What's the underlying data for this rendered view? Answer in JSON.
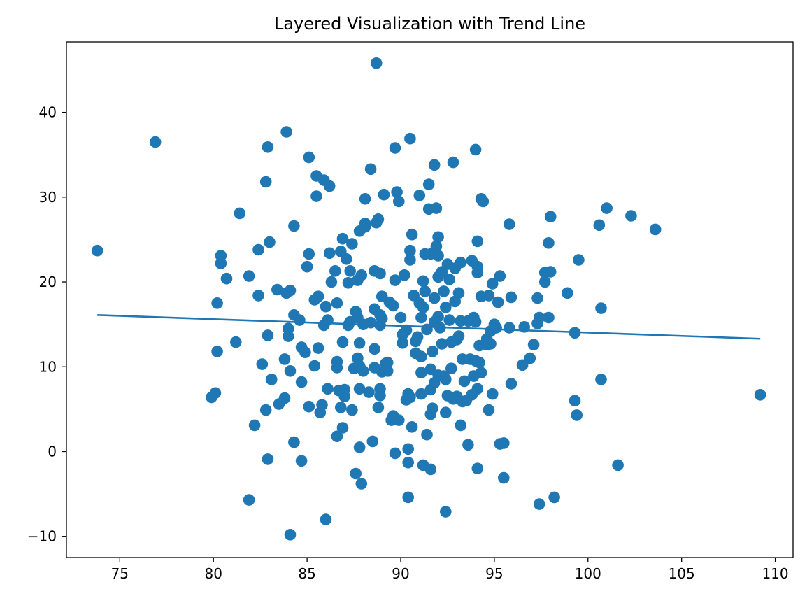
{
  "chart_data": {
    "type": "scatter",
    "title": "Layered Visualization with Trend Line",
    "xlabel": "",
    "ylabel": "",
    "xlim": [
      72.15,
      110.95
    ],
    "ylim": [
      -12.5,
      48.3
    ],
    "x_ticks": [
      75,
      80,
      85,
      90,
      95,
      100,
      105,
      110
    ],
    "y_ticks": [
      -10,
      0,
      10,
      20,
      30,
      40
    ],
    "y_tick_labels": [
      "−10",
      "0",
      "10",
      "20",
      "30",
      "40"
    ],
    "grid": false,
    "legend": "none",
    "color": "#1f77b4",
    "trend_line": {
      "x": [
        73.8,
        109.2
      ],
      "y": [
        16.1,
        13.3
      ]
    },
    "series": [
      {
        "points": [
          [
            73.8,
            23.7
          ],
          [
            76.9,
            36.5
          ],
          [
            79.9,
            6.4
          ],
          [
            80.1,
            6.9
          ],
          [
            80.2,
            11.8
          ],
          [
            80.2,
            17.5
          ],
          [
            80.4,
            22.2
          ],
          [
            80.4,
            23.1
          ],
          [
            80.7,
            20.4
          ],
          [
            81.2,
            12.9
          ],
          [
            81.4,
            28.1
          ],
          [
            81.9,
            20.7
          ],
          [
            81.9,
            -5.7
          ],
          [
            82.2,
            3.1
          ],
          [
            82.4,
            23.8
          ],
          [
            82.4,
            18.4
          ],
          [
            82.6,
            10.3
          ],
          [
            82.8,
            31.8
          ],
          [
            82.9,
            35.9
          ],
          [
            82.8,
            4.9
          ],
          [
            82.9,
            13.7
          ],
          [
            82.9,
            -0.9
          ],
          [
            83.0,
            24.7
          ],
          [
            83.1,
            8.5
          ],
          [
            83.4,
            19.1
          ],
          [
            83.5,
            5.6
          ],
          [
            83.8,
            10.9
          ],
          [
            83.8,
            6.3
          ],
          [
            83.9,
            18.7
          ],
          [
            83.9,
            37.7
          ],
          [
            84.0,
            14.5
          ],
          [
            84.0,
            13.6
          ],
          [
            84.1,
            -9.8
          ],
          [
            84.1,
            19.0
          ],
          [
            84.1,
            9.5
          ],
          [
            84.3,
            26.6
          ],
          [
            84.3,
            16.1
          ],
          [
            84.3,
            1.1
          ],
          [
            84.6,
            15.5
          ],
          [
            84.7,
            12.3
          ],
          [
            84.7,
            -1.1
          ],
          [
            84.7,
            8.2
          ],
          [
            84.9,
            11.7
          ],
          [
            85.0,
            21.8
          ],
          [
            85.1,
            5.3
          ],
          [
            85.1,
            23.3
          ],
          [
            85.1,
            34.7
          ],
          [
            85.4,
            10.1
          ],
          [
            85.4,
            17.9
          ],
          [
            85.5,
            30.1
          ],
          [
            85.5,
            32.5
          ],
          [
            85.6,
            18.3
          ],
          [
            85.6,
            12.2
          ],
          [
            85.7,
            4.6
          ],
          [
            85.8,
            5.5
          ],
          [
            85.9,
            14.9
          ],
          [
            85.9,
            32.0
          ],
          [
            86.0,
            17.1
          ],
          [
            86.0,
            -8.0
          ],
          [
            86.1,
            7.4
          ],
          [
            86.1,
            15.5
          ],
          [
            86.2,
            31.3
          ],
          [
            86.2,
            23.4
          ],
          [
            86.3,
            20.0
          ],
          [
            86.5,
            21.3
          ],
          [
            86.6,
            17.5
          ],
          [
            86.6,
            10.6
          ],
          [
            86.6,
            1.8
          ],
          [
            86.6,
            9.9
          ],
          [
            86.7,
            7.2
          ],
          [
            86.8,
            5.2
          ],
          [
            86.8,
            23.6
          ],
          [
            86.9,
            25.1
          ],
          [
            86.9,
            12.9
          ],
          [
            86.9,
            2.8
          ],
          [
            87.0,
            6.5
          ],
          [
            87.0,
            7.3
          ],
          [
            87.1,
            22.7
          ],
          [
            87.2,
            19.9
          ],
          [
            87.2,
            14.9
          ],
          [
            87.3,
            21.3
          ],
          [
            87.3,
            15.3
          ],
          [
            87.4,
            4.9
          ],
          [
            87.4,
            24.5
          ],
          [
            87.5,
            9.8
          ],
          [
            87.6,
            -2.6
          ],
          [
            87.6,
            16.5
          ],
          [
            87.7,
            15.8
          ],
          [
            87.7,
            11.0
          ],
          [
            87.7,
            20.2
          ],
          [
            87.8,
            12.8
          ],
          [
            87.8,
            10.1
          ],
          [
            87.8,
            26.0
          ],
          [
            87.8,
            7.4
          ],
          [
            87.9,
            20.8
          ],
          [
            87.8,
            0.5
          ],
          [
            87.9,
            -3.8
          ],
          [
            88.0,
            15.0
          ],
          [
            88.0,
            9.5
          ],
          [
            88.1,
            29.8
          ],
          [
            88.1,
            26.5
          ],
          [
            88.1,
            26.9
          ],
          [
            88.3,
            7.0
          ],
          [
            88.4,
            15.2
          ],
          [
            88.4,
            33.3
          ],
          [
            88.5,
            1.2
          ],
          [
            88.6,
            21.3
          ],
          [
            88.6,
            9.9
          ],
          [
            88.6,
            16.8
          ],
          [
            88.6,
            12.1
          ],
          [
            88.7,
            45.8
          ],
          [
            88.7,
            27.0
          ],
          [
            88.8,
            27.4
          ],
          [
            88.8,
            5.2
          ],
          [
            88.9,
            21.0
          ],
          [
            88.9,
            14.9
          ],
          [
            88.9,
            16.1
          ],
          [
            88.9,
            7.4
          ],
          [
            88.9,
            6.6
          ],
          [
            89.0,
            15.7
          ],
          [
            89.0,
            9.4
          ],
          [
            89.0,
            18.3
          ],
          [
            89.1,
            30.3
          ],
          [
            89.2,
            10.4
          ],
          [
            89.3,
            10.5
          ],
          [
            89.3,
            9.5
          ],
          [
            89.4,
            17.6
          ],
          [
            89.5,
            3.7
          ],
          [
            89.6,
            4.2
          ],
          [
            89.6,
            17.2
          ],
          [
            89.7,
            20.2
          ],
          [
            89.7,
            -0.2
          ],
          [
            89.7,
            35.8
          ],
          [
            89.8,
            30.6
          ],
          [
            89.9,
            29.5
          ],
          [
            89.9,
            3.7
          ],
          [
            90.0,
            15.8
          ],
          [
            90.1,
            12.8
          ],
          [
            90.1,
            13.8
          ],
          [
            90.2,
            20.8
          ],
          [
            90.3,
            14.3
          ],
          [
            90.3,
            6.1
          ],
          [
            90.4,
            0.3
          ],
          [
            90.4,
            -1.3
          ],
          [
            90.4,
            -5.4
          ],
          [
            90.4,
            6.8
          ],
          [
            90.5,
            23.7
          ],
          [
            90.5,
            22.6
          ],
          [
            90.5,
            36.9
          ],
          [
            90.5,
            6.4
          ],
          [
            90.6,
            25.6
          ],
          [
            90.6,
            2.9
          ],
          [
            90.7,
            18.4
          ],
          [
            90.8,
            13.0
          ],
          [
            90.8,
            11.6
          ],
          [
            90.9,
            13.5
          ],
          [
            91.0,
            30.2
          ],
          [
            91.0,
            17.5
          ],
          [
            91.1,
            9.3
          ],
          [
            91.1,
            11.2
          ],
          [
            91.1,
            15.8
          ],
          [
            91.1,
            6.8
          ],
          [
            91.2,
            -1.6
          ],
          [
            91.2,
            17.0
          ],
          [
            91.2,
            20.1
          ],
          [
            91.3,
            23.3
          ],
          [
            91.3,
            18.9
          ],
          [
            91.4,
            14.4
          ],
          [
            91.4,
            2.0
          ],
          [
            91.5,
            28.6
          ],
          [
            91.5,
            31.5
          ],
          [
            91.6,
            23.3
          ],
          [
            91.6,
            9.7
          ],
          [
            91.6,
            7.3
          ],
          [
            91.6,
            4.4
          ],
          [
            91.6,
            -2.1
          ],
          [
            91.7,
            5.1
          ],
          [
            91.7,
            11.8
          ],
          [
            91.8,
            8.1
          ],
          [
            91.8,
            33.8
          ],
          [
            91.8,
            15.3
          ],
          [
            91.8,
            18.1
          ],
          [
            91.9,
            28.7
          ],
          [
            91.9,
            24.2
          ],
          [
            92.0,
            25.3
          ],
          [
            92.0,
            23.1
          ],
          [
            92.0,
            15.9
          ],
          [
            92.0,
            20.6
          ],
          [
            92.0,
            9.0
          ],
          [
            92.1,
            14.6
          ],
          [
            92.2,
            21.2
          ],
          [
            92.2,
            12.7
          ],
          [
            92.3,
            18.9
          ],
          [
            92.3,
            8.9
          ],
          [
            92.4,
            -7.1
          ],
          [
            92.4,
            4.6
          ],
          [
            92.4,
            8.5
          ],
          [
            92.4,
            17.0
          ],
          [
            92.5,
            22.1
          ],
          [
            92.5,
            6.6
          ],
          [
            92.6,
            20.3
          ],
          [
            92.6,
            15.5
          ],
          [
            92.7,
            9.8
          ],
          [
            92.7,
            12.9
          ],
          [
            92.8,
            6.2
          ],
          [
            92.8,
            34.1
          ],
          [
            92.9,
            17.7
          ],
          [
            92.9,
            21.6
          ],
          [
            93.0,
            6.5
          ],
          [
            93.0,
            13.2
          ],
          [
            93.1,
            13.6
          ],
          [
            93.1,
            18.7
          ],
          [
            93.2,
            15.4
          ],
          [
            93.2,
            22.3
          ],
          [
            93.2,
            3.1
          ],
          [
            93.3,
            10.9
          ],
          [
            93.3,
            5.9
          ],
          [
            93.4,
            8.3
          ],
          [
            93.5,
            6.0
          ],
          [
            93.6,
            0.8
          ],
          [
            93.6,
            15.4
          ],
          [
            93.7,
            10.9
          ],
          [
            93.8,
            22.5
          ],
          [
            93.8,
            6.7
          ],
          [
            93.9,
            15.8
          ],
          [
            93.9,
            8.9
          ],
          [
            94.0,
            35.6
          ],
          [
            94.0,
            15.3
          ],
          [
            94.0,
            10.7
          ],
          [
            94.1,
            -2.0
          ],
          [
            94.1,
            21.8
          ],
          [
            94.1,
            21.1
          ],
          [
            94.1,
            24.8
          ],
          [
            94.1,
            7.4
          ],
          [
            94.2,
            12.5
          ],
          [
            94.2,
            10.5
          ],
          [
            94.3,
            9.3
          ],
          [
            94.3,
            18.3
          ],
          [
            94.3,
            29.8
          ],
          [
            94.4,
            29.5
          ],
          [
            94.6,
            12.6
          ],
          [
            94.6,
            13.3
          ],
          [
            94.7,
            18.4
          ],
          [
            94.7,
            4.9
          ],
          [
            94.8,
            12.7
          ],
          [
            94.8,
            14.2
          ],
          [
            94.9,
            6.8
          ],
          [
            94.9,
            19.8
          ],
          [
            95.0,
            15.0
          ],
          [
            95.1,
            14.6
          ],
          [
            95.2,
            17.6
          ],
          [
            95.3,
            20.7
          ],
          [
            95.3,
            0.9
          ],
          [
            95.5,
            1.0
          ],
          [
            95.5,
            -3.1
          ],
          [
            95.8,
            14.6
          ],
          [
            95.8,
            26.8
          ],
          [
            95.9,
            8.0
          ],
          [
            95.9,
            18.2
          ],
          [
            96.6,
            14.7
          ],
          [
            96.5,
            10.2
          ],
          [
            96.9,
            11.0
          ],
          [
            97.1,
            12.6
          ],
          [
            97.3,
            15.1
          ],
          [
            97.3,
            18.1
          ],
          [
            97.4,
            15.8
          ],
          [
            97.4,
            -6.2
          ],
          [
            97.7,
            21.1
          ],
          [
            97.7,
            20.0
          ],
          [
            97.9,
            15.8
          ],
          [
            97.9,
            24.6
          ],
          [
            98.0,
            27.7
          ],
          [
            98.0,
            21.2
          ],
          [
            98.2,
            -5.4
          ],
          [
            98.9,
            18.7
          ],
          [
            99.3,
            6.0
          ],
          [
            99.3,
            14.0
          ],
          [
            99.4,
            4.3
          ],
          [
            99.5,
            22.6
          ],
          [
            100.6,
            26.7
          ],
          [
            100.7,
            16.9
          ],
          [
            100.7,
            8.5
          ],
          [
            101.0,
            28.7
          ],
          [
            101.6,
            -1.6
          ],
          [
            102.3,
            27.8
          ],
          [
            103.6,
            26.2
          ],
          [
            109.2,
            6.7
          ]
        ]
      }
    ]
  }
}
